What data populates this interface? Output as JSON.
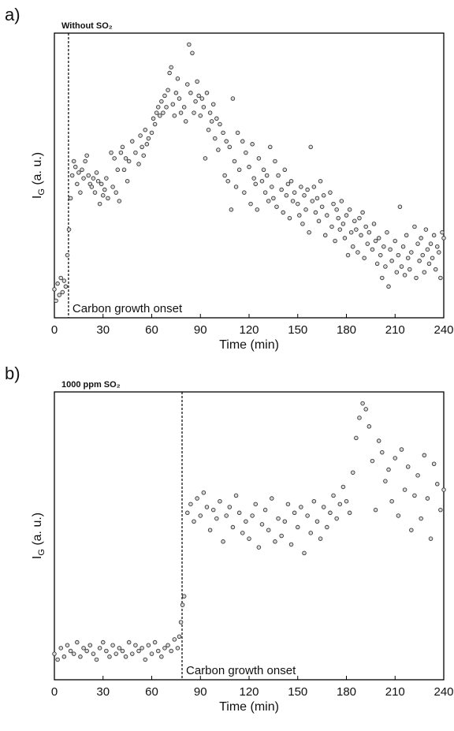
{
  "chart_data": [
    {
      "type": "scatter",
      "panel_label": "a)",
      "title": "Without SO₂",
      "xlabel": "Time (min)",
      "ylabel": {
        "main": "I",
        "sub": "G",
        "rest": " (a. u.)"
      },
      "annotation": "Carbon growth onset",
      "onset_x": 8.7,
      "xlim": [
        0,
        240
      ],
      "xticks": [
        0,
        30,
        60,
        90,
        120,
        150,
        180,
        210,
        240
      ],
      "ylim": [
        0,
        100
      ],
      "marker_color": "#d9d9d9",
      "x": [
        0,
        1,
        2,
        3,
        4,
        5,
        6,
        7,
        8,
        9,
        10,
        11,
        12,
        13,
        14,
        15,
        16,
        17,
        18,
        19,
        20,
        21,
        22,
        23,
        24,
        25,
        26,
        27,
        28,
        29,
        30,
        31,
        32,
        33,
        35,
        36,
        37,
        38,
        39,
        40,
        41,
        42,
        43,
        44,
        45,
        46,
        48,
        50,
        52,
        53,
        54,
        55,
        56,
        57,
        58,
        60,
        61,
        62,
        63,
        64,
        65,
        66,
        67,
        68,
        69,
        70,
        71,
        72,
        73,
        74,
        75,
        76,
        77,
        78,
        80,
        81,
        82,
        83,
        84,
        85,
        86,
        87,
        88,
        89,
        90,
        91,
        92,
        93,
        94,
        95,
        96,
        97,
        98,
        99,
        100,
        101,
        102,
        104,
        105,
        106,
        107,
        108,
        109,
        110,
        111,
        112,
        113,
        114,
        116,
        117,
        118,
        120,
        121,
        122,
        123,
        124,
        125,
        126,
        128,
        129,
        130,
        131,
        132,
        133,
        134,
        135,
        136,
        137,
        138,
        140,
        141,
        142,
        143,
        144,
        145,
        146,
        147,
        148,
        150,
        151,
        152,
        153,
        154,
        155,
        156,
        157,
        158,
        159,
        160,
        161,
        162,
        163,
        164,
        165,
        166,
        167,
        168,
        170,
        171,
        172,
        173,
        174,
        175,
        176,
        177,
        178,
        179,
        180,
        181,
        182,
        183,
        184,
        185,
        186,
        187,
        188,
        189,
        190,
        191,
        192,
        193,
        194,
        196,
        197,
        198,
        199,
        200,
        201,
        202,
        203,
        204,
        205,
        206,
        207,
        208,
        210,
        211,
        212,
        213,
        214,
        215,
        216,
        217,
        218,
        219,
        220,
        222,
        223,
        224,
        225,
        226,
        227,
        228,
        229,
        230,
        231,
        232,
        233,
        234,
        235,
        236,
        237,
        238,
        239,
        240
      ],
      "values": [
        10,
        6,
        12,
        8,
        14,
        9,
        13,
        11,
        22,
        31,
        42,
        50,
        55,
        53,
        47,
        51,
        44,
        52,
        49,
        55,
        57,
        50,
        47,
        46,
        49,
        44,
        51,
        48,
        40,
        47,
        43,
        45,
        49,
        42,
        58,
        46,
        56,
        44,
        52,
        41,
        58,
        60,
        52,
        56,
        48,
        55,
        62,
        58,
        54,
        64,
        60,
        57,
        66,
        61,
        63,
        65,
        70,
        68,
        72,
        74,
        71,
        76,
        72,
        78,
        74,
        80,
        86,
        88,
        75,
        71,
        79,
        84,
        77,
        72,
        74,
        69,
        82,
        96,
        79,
        93,
        72,
        76,
        83,
        78,
        71,
        77,
        74,
        56,
        79,
        66,
        72,
        69,
        75,
        63,
        70,
        59,
        68,
        65,
        50,
        62,
        48,
        60,
        38,
        77,
        55,
        46,
        65,
        52,
        62,
        44,
        58,
        53,
        40,
        61,
        49,
        47,
        38,
        56,
        48,
        52,
        44,
        50,
        41,
        60,
        46,
        42,
        55,
        39,
        50,
        45,
        37,
        52,
        43,
        47,
        35,
        48,
        41,
        44,
        40,
        36,
        46,
        33,
        43,
        38,
        45,
        30,
        60,
        41,
        46,
        37,
        42,
        34,
        48,
        39,
        43,
        29,
        36,
        44,
        32,
        40,
        27,
        38,
        35,
        31,
        41,
        33,
        28,
        36,
        22,
        38,
        30,
        25,
        34,
        31,
        23,
        35,
        29,
        37,
        21,
        32,
        26,
        30,
        24,
        33,
        27,
        19,
        28,
        22,
        14,
        25,
        18,
        30,
        11,
        24,
        20,
        27,
        16,
        22,
        39,
        18,
        25,
        15,
        29,
        21,
        17,
        23,
        32,
        14,
        26,
        20,
        28,
        22,
        16,
        31,
        24,
        19,
        26,
        21,
        29,
        17,
        25,
        23,
        14,
        30,
        28
      ]
    },
    {
      "type": "scatter",
      "panel_label": "b)",
      "title": "1000 ppm SO₂",
      "xlabel": "Time (min)",
      "ylabel": {
        "main": "I",
        "sub": "G",
        "rest": " (a. u.)"
      },
      "annotation": "Carbon growth onset",
      "onset_x": 78.7,
      "xlim": [
        0,
        240
      ],
      "xticks": [
        0,
        30,
        60,
        90,
        120,
        150,
        180,
        210,
        240
      ],
      "ylim": [
        0,
        100
      ],
      "marker_color": "#d9d9d9",
      "x": [
        0,
        2,
        4,
        6,
        8,
        10,
        12,
        14,
        16,
        18,
        20,
        22,
        24,
        26,
        28,
        30,
        32,
        34,
        36,
        38,
        40,
        42,
        44,
        46,
        48,
        50,
        52,
        54,
        56,
        58,
        60,
        62,
        64,
        66,
        68,
        70,
        72,
        74,
        76,
        77,
        78,
        79,
        80,
        82,
        84,
        86,
        88,
        90,
        92,
        94,
        96,
        98,
        100,
        102,
        104,
        106,
        108,
        110,
        112,
        114,
        116,
        118,
        120,
        122,
        124,
        126,
        128,
        130,
        132,
        134,
        136,
        138,
        140,
        142,
        144,
        146,
        148,
        150,
        152,
        154,
        156,
        158,
        160,
        162,
        164,
        166,
        168,
        170,
        172,
        174,
        176,
        178,
        180,
        182,
        184,
        186,
        188,
        190,
        192,
        194,
        196,
        198,
        200,
        202,
        204,
        206,
        208,
        210,
        212,
        214,
        216,
        218,
        220,
        222,
        224,
        226,
        228,
        230,
        232,
        234,
        236,
        238,
        240
      ],
      "values": [
        9,
        7,
        11,
        8,
        12,
        10,
        9,
        13,
        8,
        11,
        10,
        12,
        9,
        7,
        11,
        13,
        10,
        8,
        12,
        9,
        11,
        10,
        8,
        13,
        9,
        12,
        10,
        11,
        7,
        12,
        9,
        13,
        10,
        8,
        11,
        12,
        10,
        14,
        11,
        15,
        20,
        26,
        29,
        58,
        61,
        55,
        63,
        57,
        65,
        60,
        52,
        59,
        56,
        62,
        48,
        57,
        60,
        53,
        64,
        58,
        51,
        55,
        49,
        57,
        61,
        46,
        54,
        59,
        52,
        63,
        48,
        56,
        50,
        55,
        61,
        47,
        58,
        53,
        60,
        44,
        57,
        51,
        62,
        55,
        49,
        60,
        53,
        58,
        64,
        56,
        61,
        67,
        62,
        58,
        72,
        84,
        91,
        96,
        94,
        88,
        76,
        59,
        83,
        79,
        69,
        73,
        62,
        77,
        57,
        80,
        66,
        74,
        52,
        64,
        71,
        56,
        78,
        63,
        49,
        75,
        68,
        59,
        66
      ]
    }
  ]
}
